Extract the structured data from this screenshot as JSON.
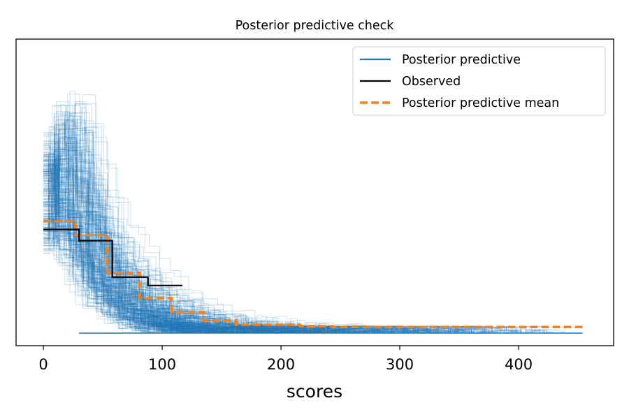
{
  "chart_data": {
    "type": "line",
    "title": "Posterior predictive check",
    "xlabel": "scores",
    "ylabel": "",
    "xlim": [
      -23,
      480
    ],
    "ylim": [
      0,
      1
    ],
    "x_ticks": [
      0,
      100,
      200,
      300,
      400
    ],
    "x_tick_labels": [
      "0",
      "100",
      "200",
      "300",
      "400"
    ],
    "y_ticks_shown": false,
    "grid": false,
    "legend": {
      "placement": "top-right",
      "entries": [
        {
          "label": "Posterior predictive",
          "color": "#1f77b4",
          "style": "solid"
        },
        {
          "label": "Observed",
          "color": "#000000",
          "style": "solid"
        },
        {
          "label": "Posterior predictive mean",
          "color": "#ff7f0e",
          "style": "dashed"
        }
      ]
    },
    "series": [
      {
        "name": "Observed",
        "color": "#000000",
        "style": "step",
        "x": [
          0,
          30,
          58,
          88,
          117
        ],
        "y": [
          0.37,
          0.33,
          0.2,
          0.17,
          0.17
        ]
      },
      {
        "name": "Posterior predictive mean",
        "color": "#ff7f0e",
        "style": "step-dashed",
        "x": [
          0,
          27,
          54,
          81,
          108,
          135,
          162,
          189,
          216,
          243,
          270,
          297,
          324,
          351,
          378,
          405,
          432,
          454
        ],
        "y": [
          0.4,
          0.35,
          0.215,
          0.125,
          0.075,
          0.045,
          0.03,
          0.03,
          0.025,
          0.022,
          0.022,
          0.022,
          0.022,
          0.022,
          0.022,
          0.022,
          0.022,
          0.022
        ]
      },
      {
        "name": "Posterior predictive",
        "color": "#1f77b4",
        "style": "step-ensemble",
        "description_of_spread": "many posterior predictive draws, dense near 0–100, sparse tails to ~450",
        "x_peak_region": [
          0,
          60
        ],
        "x_max": 454
      }
    ]
  }
}
